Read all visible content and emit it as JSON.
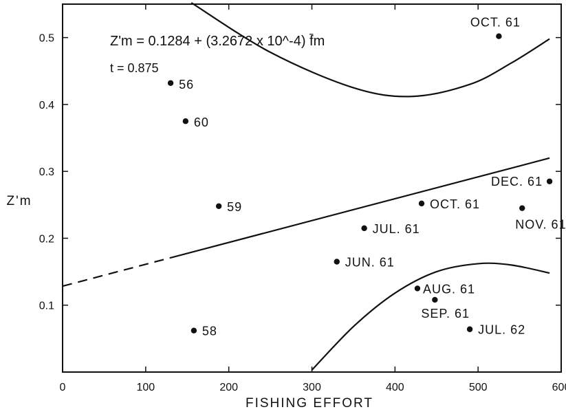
{
  "chart_data": {
    "type": "scatter",
    "xlabel": "FISHING EFFORT",
    "ylabel": "Z'm",
    "xlim": [
      0,
      600
    ],
    "ylim": [
      0,
      0.55
    ],
    "x_ticks": [
      0,
      100,
      200,
      300,
      400,
      500,
      600
    ],
    "y_ticks": [
      0.1,
      0.2,
      0.3,
      0.4,
      0.5
    ],
    "x_tick_labels": [
      "0",
      "100",
      "200",
      "300",
      "400",
      "500",
      "600"
    ],
    "y_tick_labels": [
      "0.1",
      "0.2",
      "0.3",
      "0.4",
      "0.5"
    ],
    "equation": "Z'm = 0.1284 + (3.2672 x 10^-4) f̄m",
    "t_value": "t = 0.875",
    "points": [
      {
        "label": "56",
        "x": 130,
        "y": 0.432
      },
      {
        "label": "60",
        "x": 148,
        "y": 0.375
      },
      {
        "label": "59",
        "x": 188,
        "y": 0.248
      },
      {
        "label": "58",
        "x": 158,
        "y": 0.062
      },
      {
        "label": "OCT. 61",
        "x": 525,
        "y": 0.502
      },
      {
        "label": "DEC. 61",
        "x": 586,
        "y": 0.285
      },
      {
        "label": "OCT. 61",
        "x": 432,
        "y": 0.252
      },
      {
        "label": "NOV. 61",
        "x": 553,
        "y": 0.245
      },
      {
        "label": "JUL. 61",
        "x": 363,
        "y": 0.215
      },
      {
        "label": "JUN. 61",
        "x": 330,
        "y": 0.165
      },
      {
        "label": "AUG. 61",
        "x": 427,
        "y": 0.125
      },
      {
        "label": "SEP. 61",
        "x": 448,
        "y": 0.108
      },
      {
        "label": "JUL. 62",
        "x": 490,
        "y": 0.064
      }
    ],
    "regression": {
      "intercept": 0.1284,
      "slope": 0.00032672,
      "dashed_x": [
        0,
        130
      ],
      "solid_x": [
        130,
        586
      ]
    },
    "upper_band": [
      [
        155,
        0.552
      ],
      [
        250,
        0.478
      ],
      [
        350,
        0.425
      ],
      [
        420,
        0.412
      ],
      [
        490,
        0.43
      ],
      [
        540,
        0.462
      ],
      [
        586,
        0.498
      ]
    ],
    "lower_band": [
      [
        300,
        0.003
      ],
      [
        350,
        0.068
      ],
      [
        400,
        0.118
      ],
      [
        450,
        0.15
      ],
      [
        500,
        0.162
      ],
      [
        540,
        0.16
      ],
      [
        586,
        0.148
      ]
    ]
  }
}
